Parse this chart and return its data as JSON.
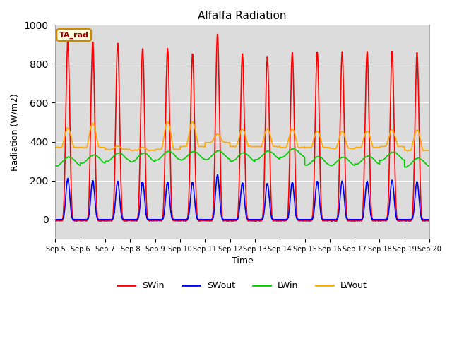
{
  "title": "Alfalfa Radiation",
  "xlabel": "Time",
  "ylabel": "Radiation (W/m2)",
  "ylim": [
    -100,
    1000
  ],
  "background_color": "#ffffff",
  "plot_bg_color": "#dcdcdc",
  "grid_color": "#ffffff",
  "annotation_text": "TA_rad",
  "annotation_bg": "#ffffe0",
  "annotation_border": "#cc8800",
  "series": {
    "SWin": {
      "color": "#ff0000",
      "lw": 1.2
    },
    "SWout": {
      "color": "#0000ff",
      "lw": 1.2
    },
    "LWin": {
      "color": "#00cc00",
      "lw": 1.2
    },
    "LWout": {
      "color": "#ffaa00",
      "lw": 1.2
    }
  },
  "legend": {
    "labels": [
      "SWin",
      "SWout",
      "LWin",
      "LWout"
    ],
    "colors": [
      "#ff0000",
      "#0000ff",
      "#00cc00",
      "#ffaa00"
    ],
    "ncol": 4
  },
  "xtick_labels": [
    "Sep 5",
    "Sep 6",
    "Sep 7",
    "Sep 8",
    "Sep 9",
    "Sep 10",
    "Sep 11",
    "Sep 12",
    "Sep 13",
    "Sep 14",
    "Sep 15",
    "Sep 16",
    "Sep 17",
    "Sep 18",
    "Sep 19",
    "Sep 20"
  ],
  "num_days": 15,
  "SWin_peaks": [
    915,
    910,
    905,
    877,
    878,
    850,
    950,
    850,
    833,
    855,
    860,
    860,
    860,
    860,
    855
  ],
  "SWout_peaks": [
    207,
    200,
    193,
    190,
    190,
    190,
    227,
    185,
    183,
    190,
    193,
    195,
    195,
    200,
    193
  ],
  "LWout_peaks": [
    470,
    495,
    375,
    370,
    503,
    503,
    440,
    465,
    465,
    465,
    453,
    453,
    455,
    460,
    460
  ],
  "LWout_base": [
    370,
    370,
    360,
    355,
    360,
    375,
    395,
    375,
    375,
    370,
    370,
    365,
    370,
    375,
    355
  ],
  "LWin_base": [
    298,
    310,
    320,
    318,
    328,
    328,
    330,
    320,
    330,
    340,
    300,
    298,
    305,
    325,
    293
  ]
}
